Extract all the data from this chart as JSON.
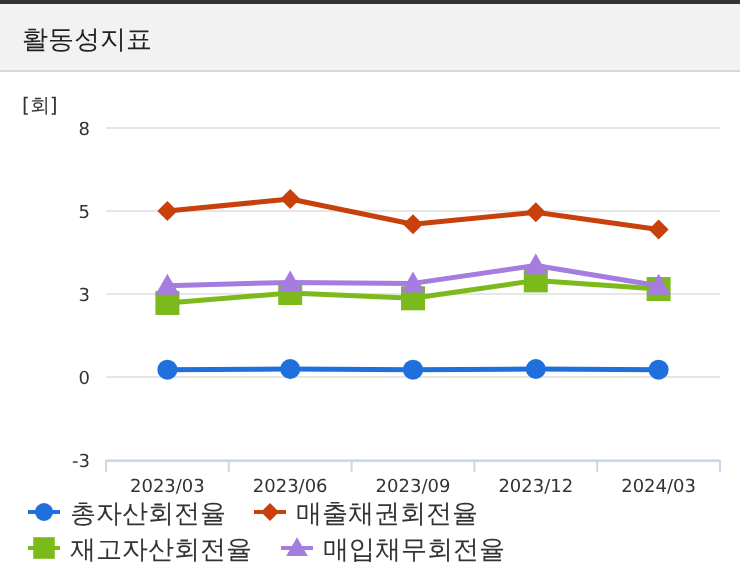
{
  "chart_data": {
    "type": "line",
    "title": "활동성지표",
    "ylabel": "[회]",
    "categories": [
      "2023/03",
      "2023/06",
      "2023/09",
      "2023/12",
      "2024/03"
    ],
    "ylim": [
      -2.5,
      7.5
    ],
    "yticks": [
      {
        "value": -2.5,
        "label": "-3"
      },
      {
        "value": 0,
        "label": "0"
      },
      {
        "value": 2.5,
        "label": "3"
      },
      {
        "value": 5,
        "label": "5"
      },
      {
        "value": 7.5,
        "label": "8"
      }
    ],
    "grid": "y",
    "legend": "bottom",
    "line_style": "solid",
    "series": [
      {
        "name": "총자산회전율",
        "color": "#1f6fdc",
        "marker": "circle",
        "values": [
          0.22,
          0.24,
          0.22,
          0.24,
          0.22
        ]
      },
      {
        "name": "매출채권회전율",
        "color": "#c8400c",
        "marker": "diamond",
        "values": [
          5.0,
          5.36,
          4.6,
          4.96,
          4.44
        ]
      },
      {
        "name": "재고자산회전율",
        "color": "#7cba1c",
        "marker": "square",
        "values": [
          2.23,
          2.53,
          2.37,
          2.91,
          2.65
        ]
      },
      {
        "name": "매입채무회전율",
        "color": "#a57ce0",
        "marker": "triangle",
        "values": [
          2.75,
          2.85,
          2.82,
          3.36,
          2.75
        ]
      }
    ]
  }
}
